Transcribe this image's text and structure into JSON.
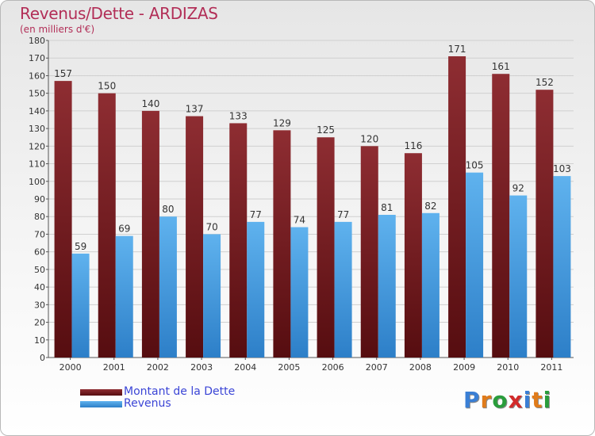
{
  "header": {
    "title": "Revenus/Dette - ARDIZAS",
    "subtitle": "(en milliers d'€)"
  },
  "chart_data": {
    "type": "bar",
    "categories": [
      "2000",
      "2001",
      "2002",
      "2003",
      "2004",
      "2005",
      "2006",
      "2007",
      "2008",
      "2009",
      "2010",
      "2011"
    ],
    "series": [
      {
        "name": "Montant de la Dette",
        "values": [
          157,
          150,
          140,
          137,
          133,
          129,
          125,
          120,
          116,
          171,
          161,
          152
        ],
        "color": "#7a1c21"
      },
      {
        "name": "Revenus",
        "values": [
          59,
          69,
          80,
          70,
          77,
          74,
          77,
          81,
          82,
          105,
          92,
          103
        ],
        "color": "#3d98de"
      }
    ],
    "title": "Revenus/Dette - ARDIZAS",
    "subtitle": "(en milliers d'€)",
    "ylim": [
      0,
      180
    ],
    "yticks": [
      0,
      10,
      20,
      30,
      40,
      50,
      60,
      70,
      80,
      90,
      100,
      110,
      120,
      130,
      140,
      150,
      160,
      170,
      180
    ],
    "grid": true,
    "legend_position": "bottom-left"
  },
  "logo": {
    "text": "Proxiti",
    "letters": [
      "P",
      "r",
      "o",
      "x",
      "i",
      "t",
      "i"
    ],
    "letter_colors": [
      "#3a7fd5",
      "#e07b1a",
      "#2a9d3c",
      "#d22a2a",
      "#3a7fd5",
      "#e07b1a",
      "#2a9d3c"
    ]
  }
}
